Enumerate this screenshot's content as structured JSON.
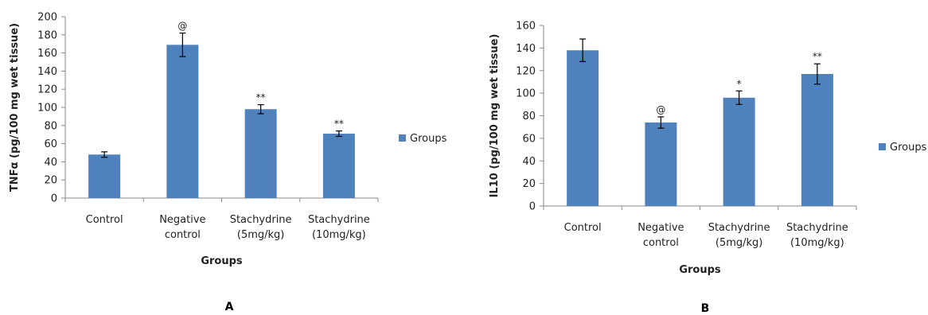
{
  "chart_data": [
    {
      "type": "bar",
      "panel_label": "A",
      "categories": [
        [
          "Control"
        ],
        [
          "Negative",
          "control"
        ],
        [
          "Stachydrine",
          "(5mg/kg)"
        ],
        [
          "Stachydrine",
          "(10mg/kg)"
        ]
      ],
      "series": [
        {
          "name": "Groups",
          "color": "#4f81bd",
          "values": [
            48,
            169,
            98,
            71
          ],
          "errors": [
            3,
            13,
            5,
            3
          ],
          "annotations": [
            "",
            "@",
            "**",
            "**"
          ]
        }
      ],
      "xlabel": "Groups",
      "ylabel": "TNFα (pg/100 mg wet tissue)",
      "ylim": [
        0,
        200
      ],
      "yticks": [
        0,
        20,
        40,
        60,
        80,
        100,
        120,
        140,
        160,
        180,
        200
      ],
      "grid": false,
      "legend": "right"
    },
    {
      "type": "bar",
      "panel_label": "B",
      "categories": [
        [
          "Control"
        ],
        [
          "Negative",
          "control"
        ],
        [
          "Stachydrine",
          "(5mg/kg)"
        ],
        [
          "Stachydrine",
          "(10mg/kg)"
        ]
      ],
      "series": [
        {
          "name": "Groups",
          "color": "#4f81bd",
          "values": [
            138,
            74,
            96,
            117
          ],
          "errors": [
            10,
            5,
            6,
            9
          ],
          "annotations": [
            "",
            "@",
            "*",
            "**"
          ]
        }
      ],
      "xlabel": "Groups",
      "ylabel": "IL10 (pg/100 mg wet tissue)",
      "ylim": [
        0,
        160
      ],
      "yticks": [
        0,
        20,
        40,
        60,
        80,
        100,
        120,
        140,
        160
      ],
      "grid": false,
      "legend": "right"
    }
  ]
}
